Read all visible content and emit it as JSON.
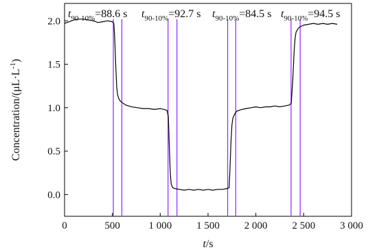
{
  "chart_data": {
    "type": "line",
    "title": "",
    "xlabel": {
      "italic": "t",
      "rest": "/s"
    },
    "ylabel": "Concentration/(μL·L",
    "ylabel_sup": "-1",
    "ylabel_close": ")",
    "xlim": [
      0,
      3000
    ],
    "ylim": [
      -0.25,
      2.2
    ],
    "grid": false,
    "x_ticks": [
      0,
      500,
      1000,
      1500,
      2000,
      2500,
      3000
    ],
    "x_tick_labels": [
      "0",
      "500",
      "1 000",
      "1 500",
      "2 000",
      "2 500",
      "3 000"
    ],
    "y_ticks": [
      0.0,
      0.5,
      1.0,
      1.5,
      2.0
    ],
    "y_tick_labels": [
      "0.0",
      "0.5",
      "1.0",
      "1.5",
      "2.0"
    ],
    "series": [
      {
        "color": "#000000",
        "x": [
          0,
          50,
          100,
          150,
          200,
          250,
          300,
          350,
          400,
          450,
          500,
          515,
          525,
          535,
          545,
          555,
          565,
          580,
          600,
          640,
          700,
          760,
          820,
          880,
          940,
          1000,
          1040,
          1070,
          1085,
          1095,
          1105,
          1115,
          1130,
          1150,
          1200,
          1250,
          1300,
          1350,
          1400,
          1450,
          1500,
          1550,
          1600,
          1650,
          1700,
          1720,
          1730,
          1740,
          1750,
          1760,
          1780,
          1800,
          1850,
          1900,
          1950,
          2000,
          2050,
          2100,
          2150,
          2200,
          2250,
          2300,
          2350,
          2370,
          2385,
          2400,
          2410,
          2420,
          2440,
          2460,
          2500,
          2550,
          2600,
          2650,
          2700,
          2750,
          2800,
          2850
        ],
        "y": [
          1.97,
          1.99,
          2.01,
          2.02,
          2.02,
          2.01,
          2.0,
          1.98,
          1.99,
          2.0,
          1.99,
          1.97,
          1.8,
          1.5,
          1.25,
          1.15,
          1.11,
          1.08,
          1.06,
          1.03,
          1.01,
          1.0,
          0.99,
          0.99,
          0.98,
          0.99,
          0.98,
          0.97,
          0.9,
          0.55,
          0.25,
          0.12,
          0.08,
          0.07,
          0.06,
          0.05,
          0.06,
          0.05,
          0.06,
          0.05,
          0.06,
          0.05,
          0.06,
          0.06,
          0.07,
          0.08,
          0.3,
          0.6,
          0.8,
          0.88,
          0.93,
          0.96,
          0.98,
          0.99,
          1.0,
          1.01,
          1.0,
          1.01,
          1.01,
          1.02,
          1.01,
          1.02,
          1.03,
          1.05,
          1.3,
          1.65,
          1.8,
          1.87,
          1.91,
          1.93,
          1.95,
          1.96,
          1.97,
          1.96,
          1.97,
          1.96,
          1.97,
          1.96
        ]
      }
    ],
    "vlines": [
      {
        "x": 510,
        "color": "#9b30ff"
      },
      {
        "x": 599,
        "color": "#9b30ff"
      },
      {
        "x": 1082,
        "color": "#9b30ff"
      },
      {
        "x": 1175,
        "color": "#9b30ff"
      },
      {
        "x": 1705,
        "color": "#9b30ff"
      },
      {
        "x": 1790,
        "color": "#9b30ff"
      },
      {
        "x": 2368,
        "color": "#9b30ff"
      },
      {
        "x": 2463,
        "color": "#9b30ff"
      }
    ],
    "annotations": [
      {
        "t": "t",
        "sub": "90-10%",
        "val": "=88.6 s"
      },
      {
        "t": "t",
        "sub": "90-10%",
        "val": "=92.7 s"
      },
      {
        "t": "t",
        "sub": "90-10%",
        "val": "=84.5 s"
      },
      {
        "t": "t",
        "sub": "90-10%",
        "val": "=94.5 s"
      }
    ]
  }
}
